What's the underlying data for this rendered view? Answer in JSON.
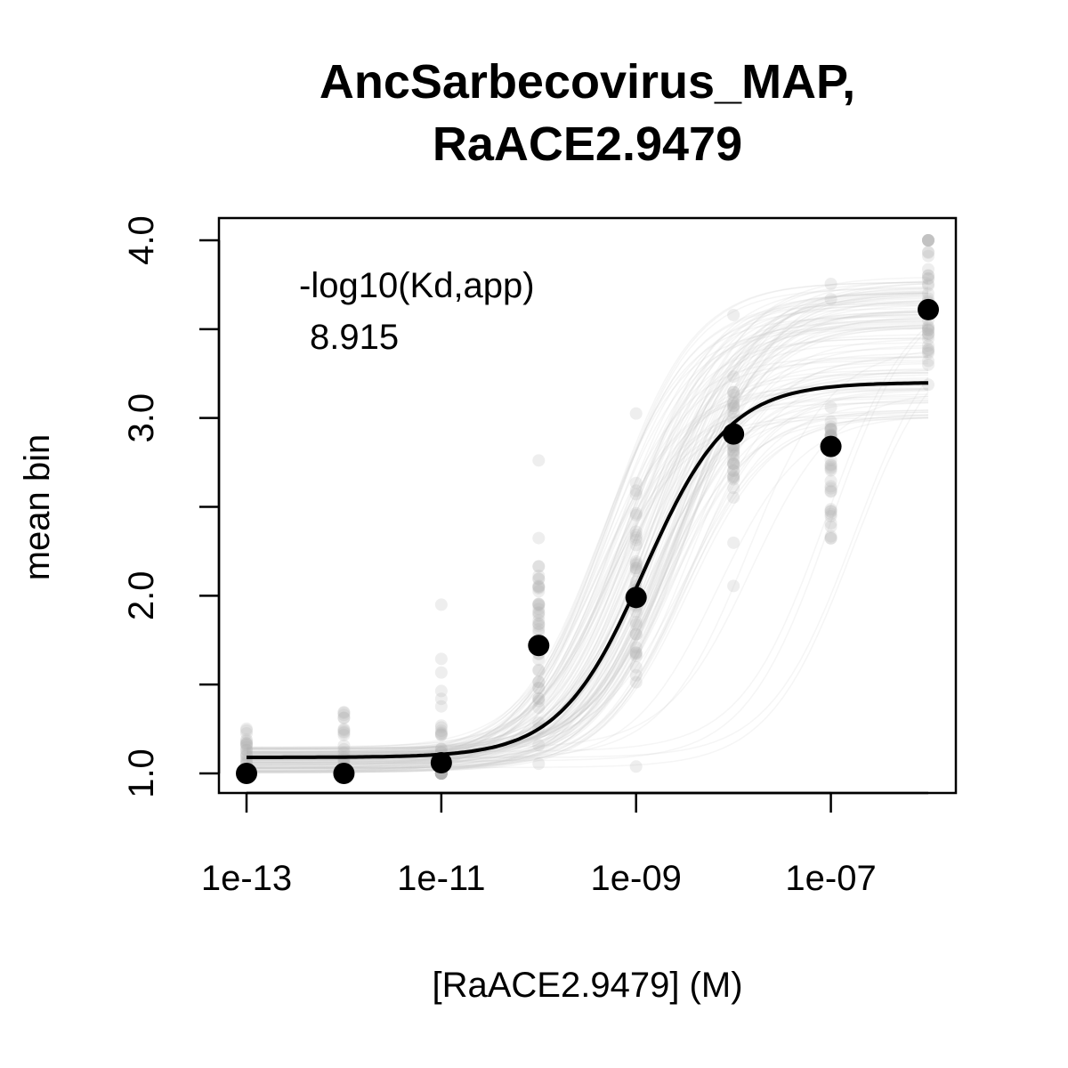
{
  "chart_data": {
    "type": "scatter",
    "title_lines": [
      "AncSarbecovirus_MAP,",
      "RaACE2.9479"
    ],
    "xlabel": "[RaACE2.9479] (M)",
    "ylabel": "mean bin",
    "x_scale": "log10",
    "xlim": [
      1e-13,
      1e-06
    ],
    "ylim": [
      1.0,
      4.0
    ],
    "x_ticks": [
      1e-13,
      1e-11,
      1e-09,
      1e-07
    ],
    "x_tick_labels": [
      "1e-13",
      "1e-11",
      "1e-09",
      "1e-07"
    ],
    "y_ticks": [
      1.0,
      1.5,
      2.0,
      2.5,
      3.0,
      3.5,
      4.0
    ],
    "y_tick_labels": [
      "1.0",
      "",
      "2.0",
      "",
      "3.0",
      "",
      "4.0"
    ],
    "grid": false,
    "annotation": {
      "label": "-log10(Kd,app)",
      "value": "8.915"
    },
    "series": [
      {
        "role": "mean points",
        "color": "#000000",
        "x": [
          1e-13,
          1e-12,
          1e-11,
          1e-10,
          1e-09,
          1e-08,
          1e-07,
          1e-06
        ],
        "y": [
          1.0,
          1.0,
          1.06,
          1.72,
          1.99,
          2.91,
          2.84,
          3.61
        ]
      },
      {
        "role": "fitted curve",
        "color": "#000000",
        "log10_kd": -8.915,
        "baseline": 1.09,
        "top": 3.2,
        "hill": 1
      }
    ],
    "background_colors": {
      "variant_points": "#b0b0b0",
      "variant_curves": "#c8c8c8"
    }
  }
}
